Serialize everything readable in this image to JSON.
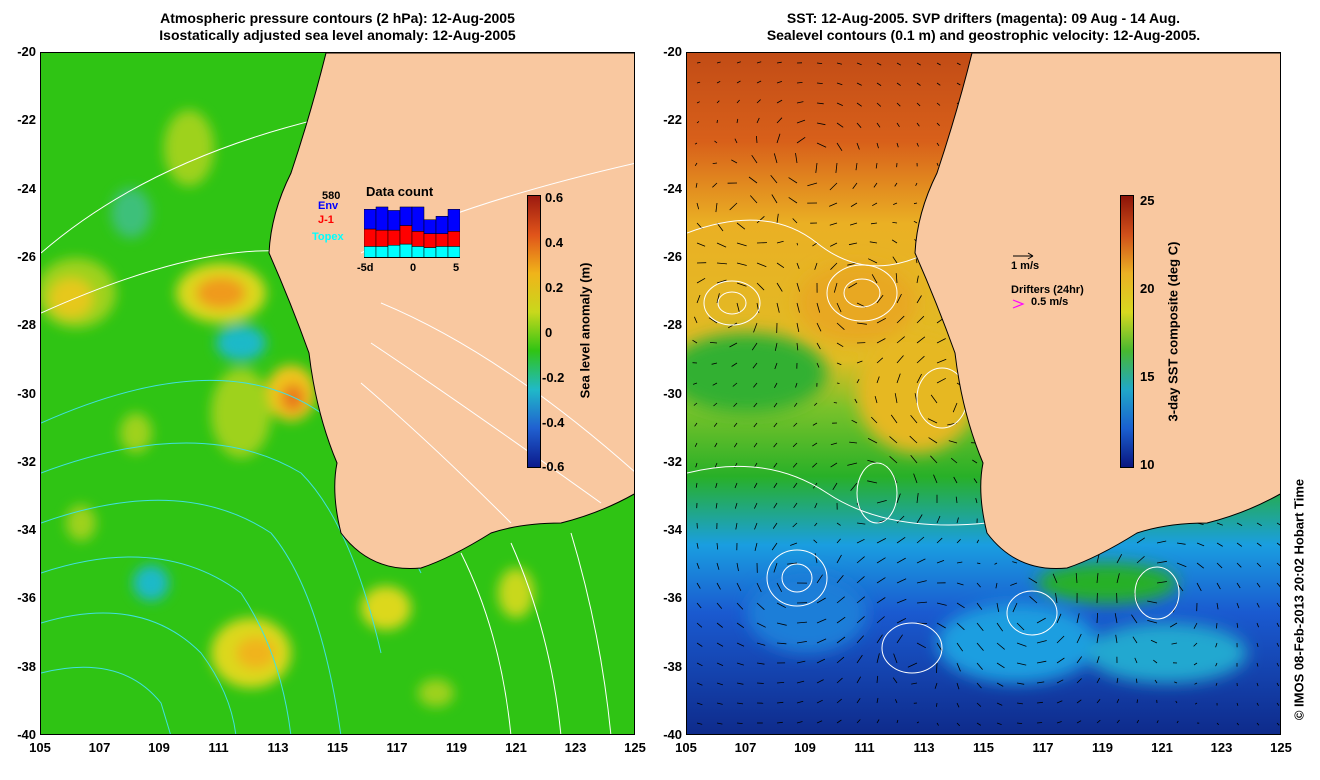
{
  "left_panel": {
    "title_line1": "Atmospheric pressure contours (2 hPa): 12-Aug-2005",
    "title_line2": "Isostatically adjusted sea level anomaly: 12-Aug-2005",
    "colorbar": {
      "label": "Sea level anomaly (m)",
      "ticks": [
        "0.6",
        "0.4",
        "0.2",
        "0",
        "-0.2",
        "-0.4",
        "-0.6"
      ]
    },
    "inset": {
      "title": "Data count",
      "count": "580",
      "legend": [
        {
          "name": "Env",
          "color": "#0000ff"
        },
        {
          "name": "J-1",
          "color": "#ff0000"
        },
        {
          "name": "Topex",
          "color": "#00ffff"
        }
      ],
      "x_ticks": [
        "-5d",
        "0",
        "5"
      ],
      "bars": [
        {
          "topex": 10,
          "j1": 15,
          "env": 17
        },
        {
          "topex": 10,
          "j1": 14,
          "env": 20
        },
        {
          "topex": 11,
          "j1": 13,
          "env": 17
        },
        {
          "topex": 12,
          "j1": 16,
          "env": 16
        },
        {
          "topex": 10,
          "j1": 13,
          "env": 21
        },
        {
          "topex": 9,
          "j1": 12,
          "env": 12
        },
        {
          "topex": 10,
          "j1": 11,
          "env": 15
        },
        {
          "topex": 10,
          "j1": 13,
          "env": 19
        }
      ],
      "bar_max": 50
    }
  },
  "right_panel": {
    "title_line1": "SST: 12-Aug-2005. SVP drifters (magenta): 09 Aug - 14 Aug.",
    "title_line2": "Sealevel contours (0.1 m) and geostrophic velocity: 12-Aug-2005.",
    "colorbar": {
      "label": "3-day SST composite (deg C)",
      "ticks": [
        "25",
        "20",
        "15",
        "10"
      ]
    },
    "velocity_scale": "1 m/s",
    "drifters_label": "Drifters (24hr)",
    "drifters_scale": "0.5 m/s",
    "drifter_color": "#ff00ff"
  },
  "axes": {
    "y_ticks": [
      "-20",
      "-22",
      "-24",
      "-26",
      "-28",
      "-30",
      "-32",
      "-34",
      "-36",
      "-38",
      "-40"
    ],
    "x_ticks": [
      "105",
      "107",
      "109",
      "111",
      "113",
      "115",
      "117",
      "119",
      "121",
      "123",
      "125"
    ]
  },
  "credit": "© IMOS 08-Feb-2013 20:02 Hobart Time",
  "colors": {
    "land": "#f9c8a0",
    "ssa_green": "#2fc414",
    "ssa_yellow": "#dcd81c",
    "ssa_orange": "#f09a1a",
    "ssa_cyan": "#1eb9c8",
    "sst_warm": "#d8601a",
    "sst_orange": "#eab024",
    "sst_green": "#32b030",
    "sst_cyan": "#1a9ee0",
    "sst_blue": "#1a3cb0"
  }
}
